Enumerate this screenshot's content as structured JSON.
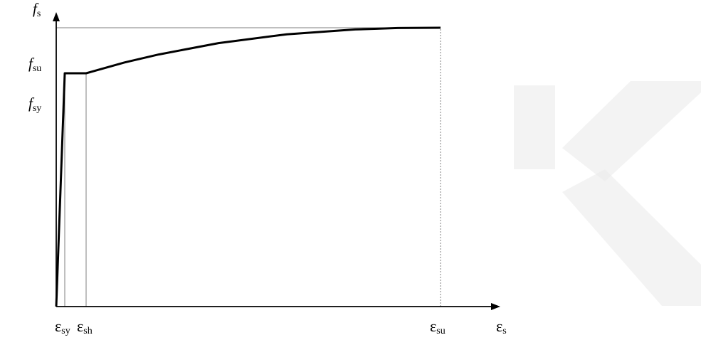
{
  "chart_data": {
    "type": "line",
    "title": "",
    "xlabel": {
      "main": "ε",
      "sub": "s"
    },
    "ylabel": {
      "main": "f",
      "sub": "s"
    },
    "x_ticks": [
      {
        "key": "esy",
        "main": "ε",
        "sub": "sy"
      },
      {
        "key": "esh",
        "main": "ε",
        "sub": "sh"
      },
      {
        "key": "esu",
        "main": "ε",
        "sub": "su"
      }
    ],
    "y_ticks": [
      {
        "key": "fsy",
        "main": "f",
        "sub": "sy"
      },
      {
        "key": "fsu",
        "main": "f",
        "sub": "su"
      }
    ],
    "axis_units": {
      "x_max": 100,
      "y_max": 100
    },
    "reference_points": {
      "esy": 2,
      "esh": 7,
      "esu": 90,
      "fsy": 82,
      "fsu": 98
    },
    "series": [
      {
        "values": [
          {
            "x": 0,
            "y": 0
          },
          {
            "x": 2,
            "y": 82
          },
          {
            "x": 7,
            "y": 82
          },
          {
            "x": 16,
            "y": 85.8
          },
          {
            "x": 24,
            "y": 88.6
          },
          {
            "x": 38,
            "y": 92.6
          },
          {
            "x": 54,
            "y": 95.7
          },
          {
            "x": 70,
            "y": 97.4
          },
          {
            "x": 80,
            "y": 97.9
          },
          {
            "x": 90,
            "y": 98
          }
        ]
      }
    ],
    "guides": [
      {
        "orientation": "horizontal",
        "at": "fsu",
        "from_x": 0,
        "to_x": "esu",
        "style": "solid"
      },
      {
        "orientation": "vertical",
        "at": "esy",
        "style": "solid"
      },
      {
        "orientation": "vertical",
        "at": "esh",
        "style": "solid"
      },
      {
        "orientation": "vertical",
        "at": "esu",
        "style": "dotted"
      }
    ],
    "grid": false,
    "legend": "none",
    "colors": {
      "curve": "#000000",
      "axis": "#000000",
      "guide": "#7f7f7f",
      "watermark": "#e9e9e9"
    }
  }
}
